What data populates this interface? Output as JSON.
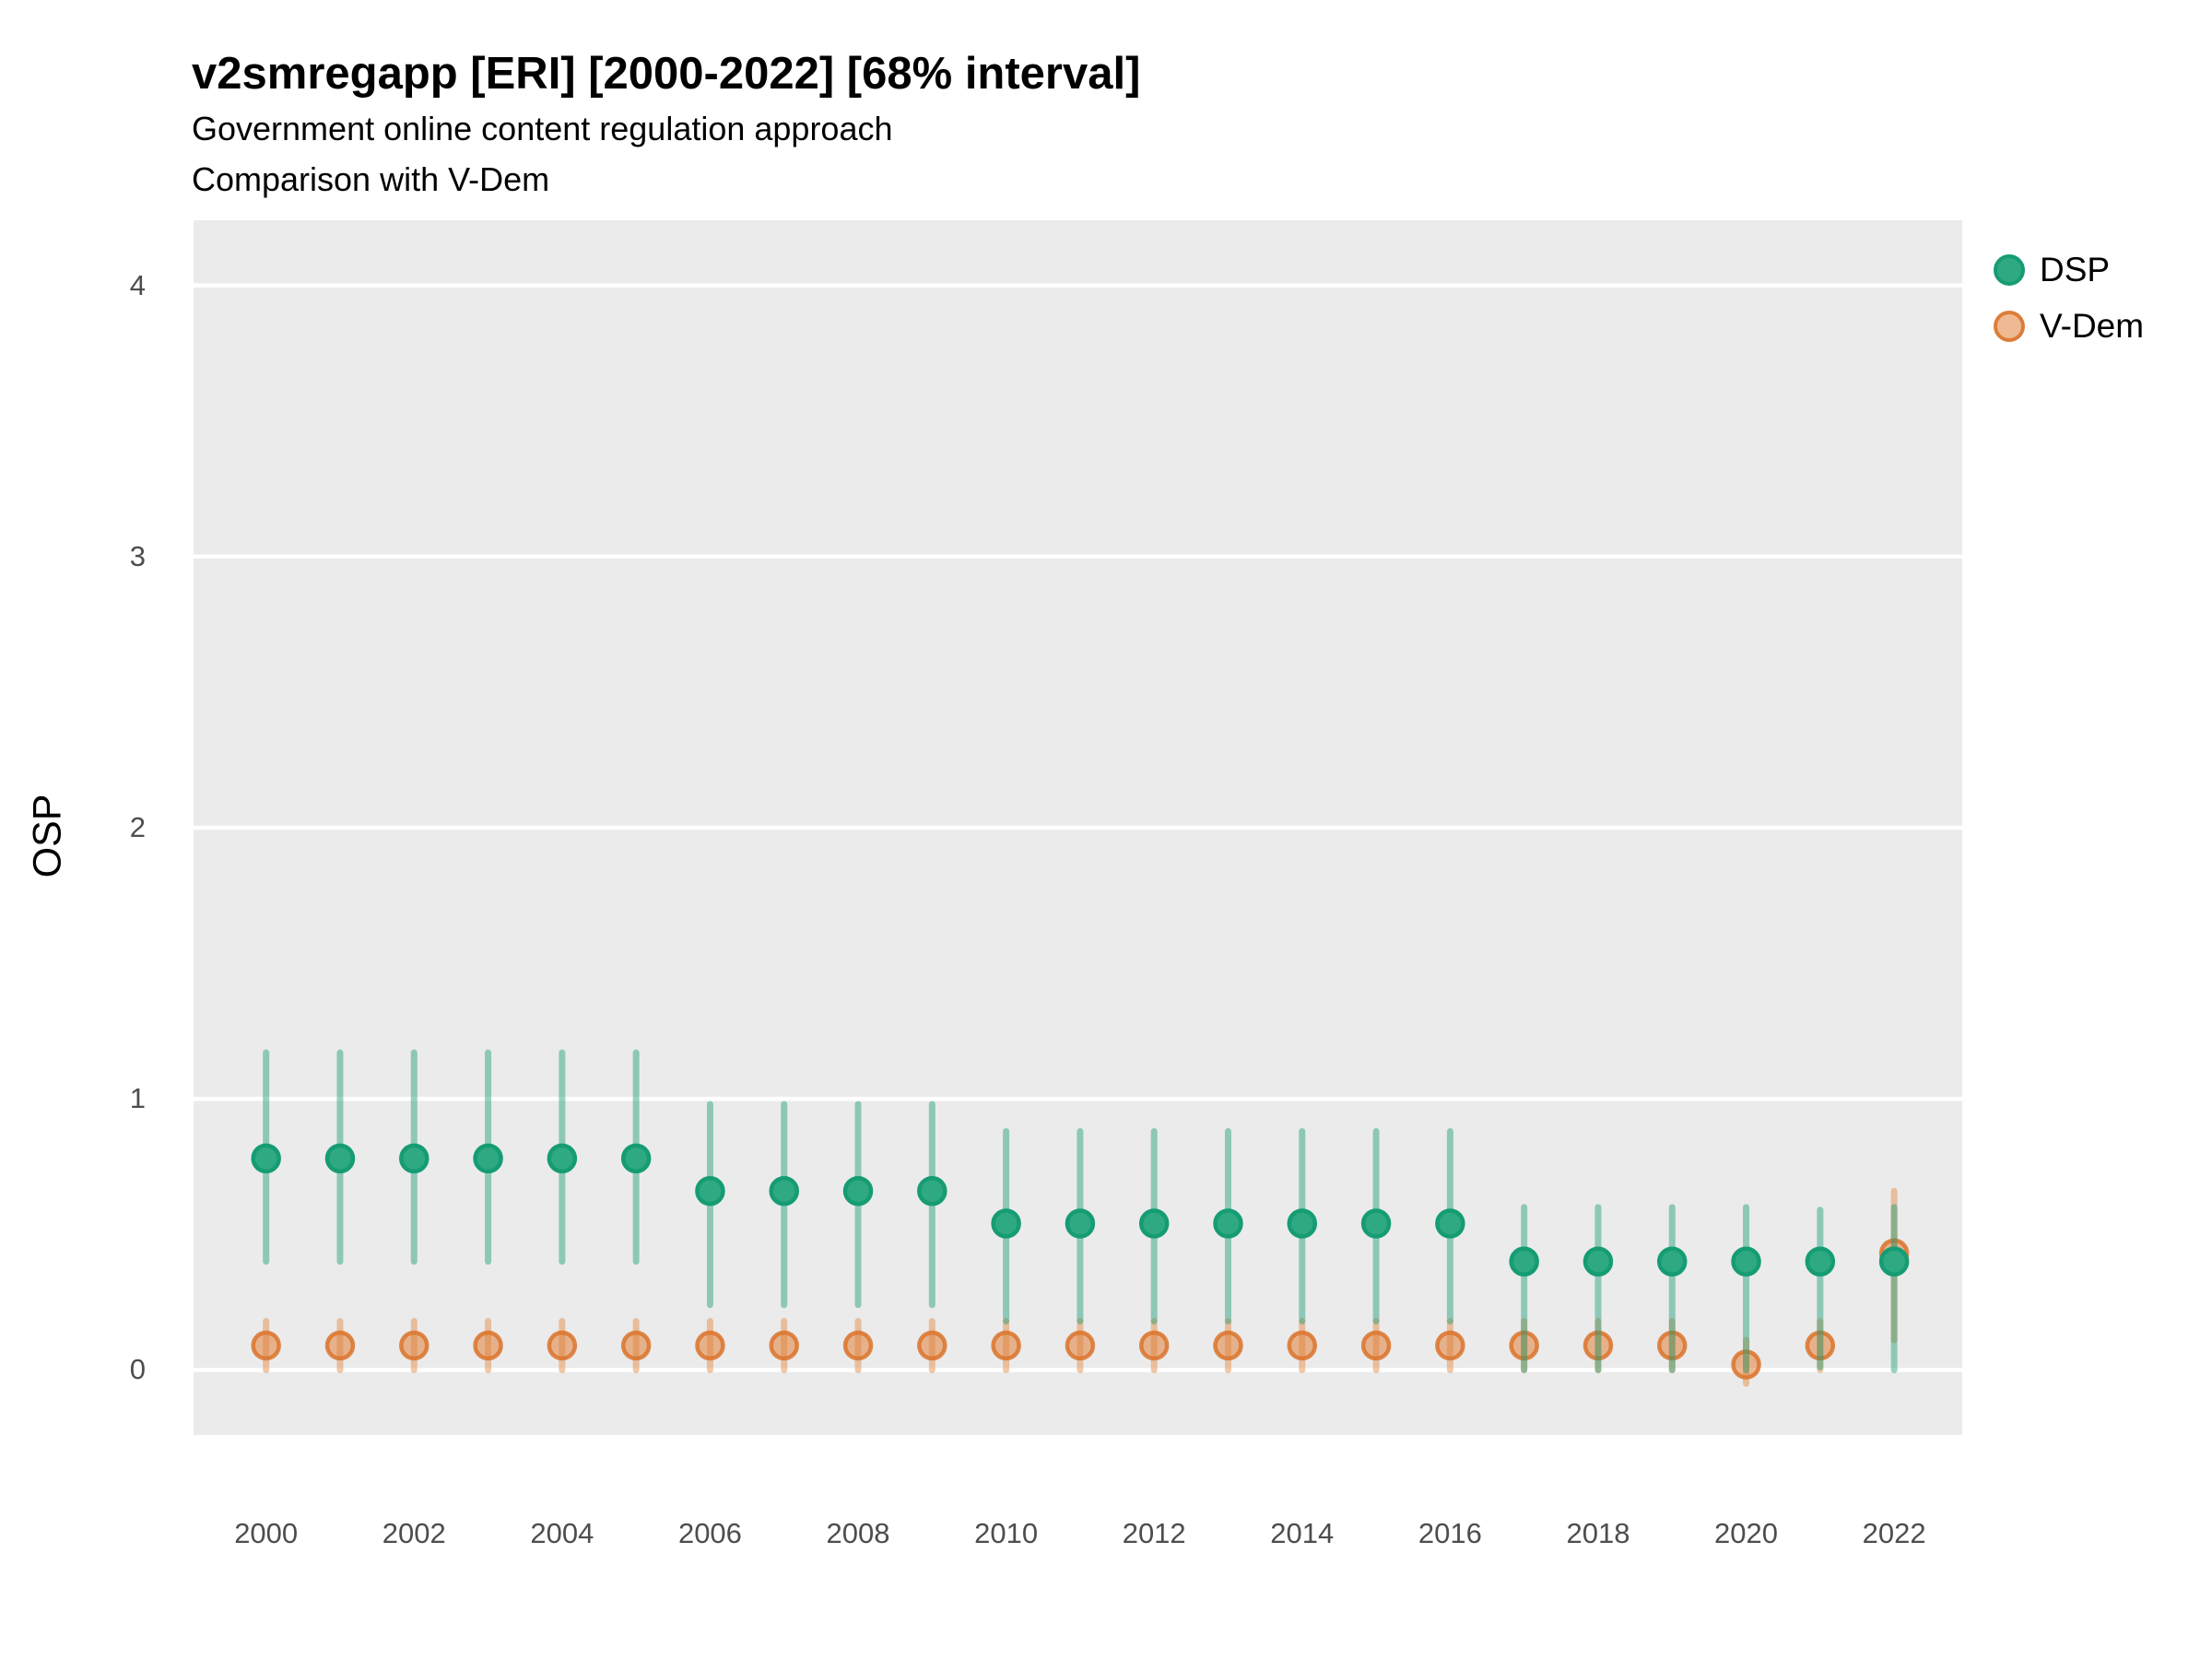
{
  "header": {
    "title": "v2smregapp [ERI] [2000-2022] [68% interval]",
    "subtitle1": "Government online content regulation approach",
    "subtitle2": "Comparison with V-Dem"
  },
  "legend": [
    {
      "label": "DSP"
    },
    {
      "label": "V-Dem"
    }
  ],
  "colors": {
    "dsp_green": "#1b9e77",
    "vdem_orange": "#e07b39",
    "panel_background": "#ebebeb",
    "gridline": "#ffffff",
    "tick_text": "#4d4d4d",
    "text": "#000000"
  },
  "chart_data": {
    "type": "pointrange",
    "title": "v2smregapp [ERI] [2000-2022] [68% interval]",
    "subtitle": [
      "Government online content regulation approach",
      "Comparison with V-Dem"
    ],
    "xlabel": "",
    "ylabel": "OSP",
    "interval": "68%",
    "x": [
      2000,
      2001,
      2002,
      2003,
      2004,
      2005,
      2006,
      2007,
      2008,
      2009,
      2010,
      2011,
      2012,
      2013,
      2014,
      2015,
      2016,
      2017,
      2018,
      2019,
      2020,
      2021,
      2022
    ],
    "series": [
      {
        "name": "DSP",
        "values": [
          0.78,
          0.78,
          0.78,
          0.78,
          0.78,
          0.78,
          0.66,
          0.66,
          0.66,
          0.66,
          0.54,
          0.54,
          0.54,
          0.54,
          0.54,
          0.54,
          0.54,
          0.4,
          0.4,
          0.4,
          0.4,
          0.4,
          0.4
        ],
        "lo": [
          0.4,
          0.4,
          0.4,
          0.4,
          0.4,
          0.4,
          0.24,
          0.24,
          0.24,
          0.24,
          0.18,
          0.18,
          0.18,
          0.18,
          0.18,
          0.18,
          0.18,
          0.0,
          0.0,
          0.0,
          0.0,
          0.01,
          0.0
        ],
        "hi": [
          1.17,
          1.17,
          1.17,
          1.17,
          1.17,
          1.17,
          0.98,
          0.98,
          0.98,
          0.98,
          0.88,
          0.88,
          0.88,
          0.88,
          0.88,
          0.88,
          0.88,
          0.6,
          0.6,
          0.6,
          0.6,
          0.59,
          0.6
        ],
        "style": {
          "bar": "rgba(27,158,119,0.45)",
          "dot_fill": "#2ea981",
          "dot_stroke": "#169c74"
        }
      },
      {
        "name": "V-Dem",
        "values": [
          0.09,
          0.09,
          0.09,
          0.09,
          0.09,
          0.09,
          0.09,
          0.09,
          0.09,
          0.09,
          0.09,
          0.09,
          0.09,
          0.09,
          0.09,
          0.09,
          0.09,
          0.09,
          0.09,
          0.09,
          0.02,
          0.09,
          0.43
        ],
        "lo": [
          0.0,
          0.0,
          0.0,
          0.0,
          0.0,
          0.0,
          0.0,
          0.0,
          0.0,
          0.0,
          0.0,
          0.0,
          0.0,
          0.0,
          0.0,
          0.0,
          0.0,
          0.0,
          0.0,
          0.0,
          -0.05,
          0.0,
          0.11
        ],
        "hi": [
          0.18,
          0.18,
          0.18,
          0.18,
          0.18,
          0.18,
          0.18,
          0.18,
          0.18,
          0.18,
          0.18,
          0.18,
          0.18,
          0.18,
          0.18,
          0.18,
          0.18,
          0.18,
          0.18,
          0.18,
          0.11,
          0.18,
          0.66
        ],
        "style": {
          "bar": "rgba(227,134,60,0.45)",
          "dot_fill": "rgba(226,129,58,0.55)",
          "dot_stroke": "rgba(219,115,42,0.85)"
        }
      }
    ],
    "yticks": [
      0,
      1,
      2,
      3,
      4
    ],
    "xticks": [
      2000,
      2002,
      2004,
      2006,
      2008,
      2010,
      2012,
      2014,
      2016,
      2018,
      2020,
      2022
    ],
    "ylim": [
      -0.24,
      4.24
    ],
    "xlim": [
      1999.02,
      2022.92
    ],
    "grid": "horizontal-major-white",
    "legend_position": "top-right"
  }
}
